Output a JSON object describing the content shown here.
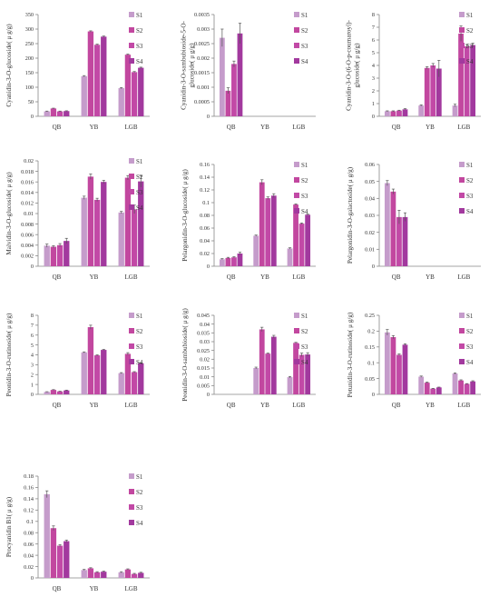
{
  "colors": [
    "#c59ccb",
    "#c2479f",
    "#c249a6",
    "#a2399e"
  ],
  "chart_data": [
    {
      "type": "bar",
      "ylabel": "Cyanidin-3-O-glucoside( μ g/g)",
      "yticks": [
        "0",
        "50",
        "100",
        "150",
        "200",
        "250",
        "300",
        "350"
      ],
      "ylim": [
        0,
        350
      ],
      "categories": [
        "QB",
        "YB",
        "LGB"
      ],
      "series": [
        {
          "name": "S1",
          "values": [
            17,
            138,
            97
          ],
          "errors": [
            1,
            2,
            2
          ]
        },
        {
          "name": "S2",
          "values": [
            27,
            292,
            212
          ],
          "errors": [
            1,
            2,
            2
          ]
        },
        {
          "name": "S3",
          "values": [
            17,
            246,
            152
          ],
          "errors": [
            1,
            2,
            2
          ]
        },
        {
          "name": "S4",
          "values": [
            18,
            274,
            167
          ],
          "errors": [
            1,
            2,
            2
          ]
        }
      ]
    },
    {
      "type": "bar",
      "ylabel": "Cyanidin-3-O-sambubioside-5-O-glucoside( μ g/g)",
      "yticks": [
        "0",
        "0.0005",
        "0.001",
        "0.0015",
        "0.002",
        "0.0025",
        "0.003",
        "0.0035"
      ],
      "ylim": [
        0,
        0.0035
      ],
      "categories": [
        "QB",
        "YB",
        "LGB"
      ],
      "series": [
        {
          "name": "S1",
          "values": [
            0.0027,
            0,
            0
          ],
          "errors": [
            0.0003,
            0,
            0
          ]
        },
        {
          "name": "S2",
          "values": [
            0.00088,
            0,
            0
          ],
          "errors": [
            0.0001,
            0,
            0
          ]
        },
        {
          "name": "S3",
          "values": [
            0.0018,
            0,
            0
          ],
          "errors": [
            0.0001,
            0,
            0
          ]
        },
        {
          "name": "S4",
          "values": [
            0.00285,
            0,
            0
          ],
          "errors": [
            0.00035,
            0,
            0
          ]
        }
      ]
    },
    {
      "type": "bar",
      "ylabel": "Cyanidin-3-O-(6-O-p-coumaroyl)-glucoside( μ g/g)",
      "yticks": [
        "0",
        "1",
        "2",
        "3",
        "4",
        "5",
        "6",
        "7",
        "8"
      ],
      "ylim": [
        0,
        8
      ],
      "categories": [
        "QB",
        "YB",
        "LGB"
      ],
      "series": [
        {
          "name": "S1",
          "values": [
            0.4,
            0.85,
            0.85
          ],
          "errors": [
            0.03,
            0.05,
            0.1
          ]
        },
        {
          "name": "S2",
          "values": [
            0.4,
            3.8,
            6.5
          ],
          "errors": [
            0.03,
            0.1,
            0.6
          ]
        },
        {
          "name": "S3",
          "values": [
            0.45,
            4.0,
            5.5
          ],
          "errors": [
            0.03,
            0.15,
            0.15
          ]
        },
        {
          "name": "S4",
          "values": [
            0.55,
            3.75,
            5.6
          ],
          "errors": [
            0.05,
            0.65,
            0.15
          ]
        }
      ]
    },
    {
      "type": "bar",
      "ylabel": "Malvidin-3-O-glucoside( μ g/g)",
      "yticks": [
        "0",
        "0.002",
        "0.004",
        "0.006",
        "0.008",
        "0.01",
        "0.012",
        "0.014",
        "0.016",
        "0.018",
        "0.02"
      ],
      "ylim": [
        0,
        0.02
      ],
      "categories": [
        "QB",
        "YB",
        "LGB"
      ],
      "series": [
        {
          "name": "S1",
          "values": [
            0.0039,
            0.013,
            0.0102
          ],
          "errors": [
            0.0003,
            0.0003,
            0.0002
          ]
        },
        {
          "name": "S2",
          "values": [
            0.0037,
            0.017,
            0.0168
          ],
          "errors": [
            0.0002,
            0.0005,
            0.0004
          ]
        },
        {
          "name": "S3",
          "values": [
            0.004,
            0.0126,
            0.0108
          ],
          "errors": [
            0.0003,
            0.0003,
            0.0008
          ]
        },
        {
          "name": "S4",
          "values": [
            0.0048,
            0.016,
            0.0161
          ],
          "errors": [
            0.0005,
            0.0003,
            0.0011
          ]
        }
      ]
    },
    {
      "type": "bar",
      "ylabel": "Pelargonidin-3-O-glucoside( μ g/g)",
      "yticks": [
        "0",
        "0.02",
        "0.04",
        "0.06",
        "0.08",
        "0.1",
        "0.12",
        "0.14",
        "0.16"
      ],
      "ylim": [
        0,
        0.16
      ],
      "categories": [
        "QB",
        "YB",
        "LGB"
      ],
      "series": [
        {
          "name": "S1",
          "values": [
            0.011,
            0.048,
            0.028
          ],
          "errors": [
            0.001,
            0.001,
            0.001
          ]
        },
        {
          "name": "S2",
          "values": [
            0.013,
            0.132,
            0.097
          ],
          "errors": [
            0.001,
            0.004,
            0.001
          ]
        },
        {
          "name": "S3",
          "values": [
            0.014,
            0.107,
            0.067
          ],
          "errors": [
            0.001,
            0.002,
            0.001
          ]
        },
        {
          "name": "S4",
          "values": [
            0.02,
            0.111,
            0.081
          ],
          "errors": [
            0.002,
            0.003,
            0.001
          ]
        }
      ]
    },
    {
      "type": "bar",
      "ylabel": "Pelargonidin-3-O-galactoside( μ g/g)",
      "yticks": [
        "0",
        "0.01",
        "0.02",
        "0.03",
        "0.04",
        "0.05",
        "0.06"
      ],
      "ylim": [
        0,
        0.06
      ],
      "categories": [
        "QB",
        "YB",
        "LGB"
      ],
      "series": [
        {
          "name": "S1",
          "values": [
            0.049,
            0,
            0
          ],
          "errors": [
            0.0015,
            0,
            0
          ]
        },
        {
          "name": "S2",
          "values": [
            0.044,
            0,
            0
          ],
          "errors": [
            0.0015,
            0,
            0
          ]
        },
        {
          "name": "S3",
          "values": [
            0.029,
            0,
            0
          ],
          "errors": [
            0.004,
            0,
            0
          ]
        },
        {
          "name": "S4",
          "values": [
            0.029,
            0,
            0
          ],
          "errors": [
            0.0025,
            0,
            0
          ]
        }
      ]
    },
    {
      "type": "bar",
      "ylabel": "Peonidin-3-O-rutinoside( μ g/g)",
      "yticks": [
        "0",
        "1",
        "2",
        "3",
        "4",
        "5",
        "6",
        "7",
        "8"
      ],
      "ylim": [
        0,
        8
      ],
      "categories": [
        "QB",
        "YB",
        "LGB"
      ],
      "series": [
        {
          "name": "S1",
          "values": [
            0.25,
            4.25,
            2.15
          ],
          "errors": [
            0.02,
            0.05,
            0.05
          ]
        },
        {
          "name": "S2",
          "values": [
            0.45,
            6.8,
            4.1
          ],
          "errors": [
            0.03,
            0.2,
            0.12
          ]
        },
        {
          "name": "S3",
          "values": [
            0.3,
            3.95,
            2.25
          ],
          "errors": [
            0.02,
            0.05,
            0.05
          ]
        },
        {
          "name": "S4",
          "values": [
            0.4,
            4.5,
            3.15
          ],
          "errors": [
            0.03,
            0.05,
            0.05
          ]
        }
      ]
    },
    {
      "type": "bar",
      "ylabel": "Peonidin-3-O-sambubioside( μ g/g)",
      "yticks": [
        "0",
        "0.005",
        "0.01",
        "0.015",
        "0.02",
        "0.025",
        "0.03",
        "0.035",
        "0.04",
        "0.045"
      ],
      "ylim": [
        0,
        0.045
      ],
      "categories": [
        "QB",
        "YB",
        "LGB"
      ],
      "series": [
        {
          "name": "S1",
          "values": [
            0,
            0.015,
            0.0098
          ],
          "errors": [
            0,
            0.0005,
            0.0004
          ]
        },
        {
          "name": "S2",
          "values": [
            0,
            0.037,
            0.0293
          ],
          "errors": [
            0,
            0.0012,
            0.0003
          ]
        },
        {
          "name": "S3",
          "values": [
            0,
            0.0232,
            0.0225
          ],
          "errors": [
            0,
            0.0003,
            0.001
          ]
        },
        {
          "name": "S4",
          "values": [
            0,
            0.0328,
            0.0227
          ],
          "errors": [
            0,
            0.0008,
            0.001
          ]
        }
      ]
    },
    {
      "type": "bar",
      "ylabel": "Petunidin-3-O-rutinoside( μ g/g)",
      "yticks": [
        "0",
        "0.05",
        "0.1",
        "0.15",
        "0.2",
        "0.25"
      ],
      "ylim": [
        0,
        0.25
      ],
      "categories": [
        "QB",
        "YB",
        "LGB"
      ],
      "series": [
        {
          "name": "S1",
          "values": [
            0.196,
            0.056,
            0.066
          ],
          "errors": [
            0.009,
            0.002,
            0.002
          ]
        },
        {
          "name": "S2",
          "values": [
            0.181,
            0.037,
            0.044
          ],
          "errors": [
            0.005,
            0.002,
            0.002
          ]
        },
        {
          "name": "S3",
          "values": [
            0.125,
            0.018,
            0.033
          ],
          "errors": [
            0.003,
            0.001,
            0.001
          ]
        },
        {
          "name": "S4",
          "values": [
            0.157,
            0.022,
            0.041
          ],
          "errors": [
            0.003,
            0.001,
            0.002
          ]
        }
      ]
    },
    {
      "type": "bar",
      "ylabel": "Procyanidin B1( μ g/g)",
      "yticks": [
        "0",
        "0.02",
        "0.04",
        "0.06",
        "0.08",
        "0.1",
        "0.12",
        "0.14",
        "0.16",
        "0.18"
      ],
      "ylim": [
        0,
        0.18
      ],
      "categories": [
        "QB",
        "YB",
        "LGB"
      ],
      "series": [
        {
          "name": "S1",
          "values": [
            0.148,
            0.014,
            0.01
          ],
          "errors": [
            0.006,
            0.001,
            0.001
          ]
        },
        {
          "name": "S2",
          "values": [
            0.088,
            0.017,
            0.015
          ],
          "errors": [
            0.004,
            0.001,
            0.001
          ]
        },
        {
          "name": "S3",
          "values": [
            0.057,
            0.01,
            0.007
          ],
          "errors": [
            0.002,
            0.001,
            0.001
          ]
        },
        {
          "name": "S4",
          "values": [
            0.065,
            0.011,
            0.009
          ],
          "errors": [
            0.002,
            0.001,
            0.001
          ]
        }
      ]
    }
  ]
}
